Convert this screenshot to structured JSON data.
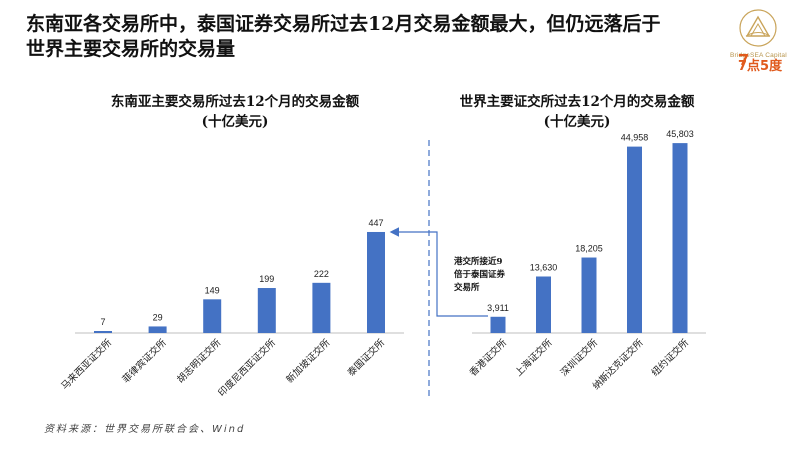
{
  "header": {
    "title_line1": "东南亚各交易所中，泰国证券交易所过去12月交易金额最大，但仍远落后于",
    "title_line2": "世界主要交易所的交易量"
  },
  "logo": {
    "brand_text": "BridgeSEA Capital",
    "partner_text": "7点5度"
  },
  "colors": {
    "bar": "#4472C4",
    "accent_arrow": "#4472C4",
    "divider": "#4472C4"
  },
  "annotation": "港交所接近9倍于泰国证券交易所",
  "source": "资料来源：世界交易所联合会、Wind",
  "chart_data": [
    {
      "type": "bar",
      "title": "东南亚主要交易所过去12个月的交易金额",
      "subtitle": "(十亿美元)",
      "categories": [
        "马来西亚证交所",
        "菲律宾证交所",
        "胡志明证交所",
        "印度尼西亚证交所",
        "新加坡证交所",
        "泰国证交所"
      ],
      "values": [
        7,
        29,
        149,
        199,
        222,
        447
      ],
      "labels": [
        "7",
        "29",
        "149",
        "199",
        "222",
        "447"
      ],
      "ylim": [
        0,
        500
      ]
    },
    {
      "type": "bar",
      "title": "世界主要证交所过去12个月的交易金额",
      "subtitle": "(十亿美元)",
      "categories": [
        "香港证交所",
        "上海证交所",
        "深圳证交所",
        "纳斯达克证交所",
        "纽约证交所"
      ],
      "values": [
        3911,
        13630,
        18205,
        44958,
        45803
      ],
      "labels": [
        "3,911",
        "13,630",
        "18,205",
        "44,958",
        "45,803"
      ],
      "ylim": [
        0,
        48000
      ]
    }
  ]
}
